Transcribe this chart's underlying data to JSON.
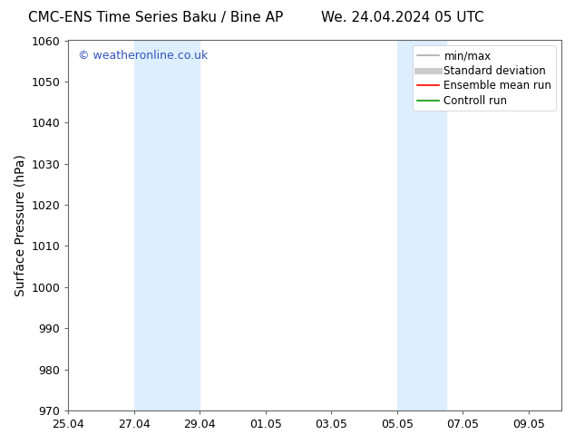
{
  "title_left": "CMC-ENS Time Series Baku / Bine AP",
  "title_right": "We. 24.04.2024 05 UTC",
  "ylabel": "Surface Pressure (hPa)",
  "ylim": [
    970,
    1060
  ],
  "yticks": [
    970,
    980,
    990,
    1000,
    1010,
    1020,
    1030,
    1040,
    1050,
    1060
  ],
  "xtick_labels": [
    "25.04",
    "27.04",
    "29.04",
    "01.05",
    "03.05",
    "05.05",
    "07.05",
    "09.05"
  ],
  "xtick_offsets": [
    0,
    2,
    4,
    6,
    8,
    10,
    12,
    14
  ],
  "x_min": 0,
  "x_max": 15,
  "watermark": "© weatheronline.co.uk",
  "watermark_color": "#3355bb",
  "shaded_regions": [
    {
      "x_start": 2,
      "x_end": 4
    },
    {
      "x_start": 10,
      "x_end": 11.5
    }
  ],
  "shade_color": "#ddeeff",
  "background_color": "#ffffff",
  "legend_items": [
    {
      "label": "min/max",
      "color": "#aaaaaa",
      "lw": 1.2,
      "style": "solid"
    },
    {
      "label": "Standard deviation",
      "color": "#cccccc",
      "lw": 5,
      "style": "solid"
    },
    {
      "label": "Ensemble mean run",
      "color": "#ff0000",
      "lw": 1.2,
      "style": "solid"
    },
    {
      "label": "Controll run",
      "color": "#009900",
      "lw": 1.2,
      "style": "solid"
    }
  ],
  "title_fontsize": 11,
  "tick_fontsize": 9,
  "ylabel_fontsize": 10,
  "watermark_fontsize": 9,
  "legend_fontsize": 8.5
}
